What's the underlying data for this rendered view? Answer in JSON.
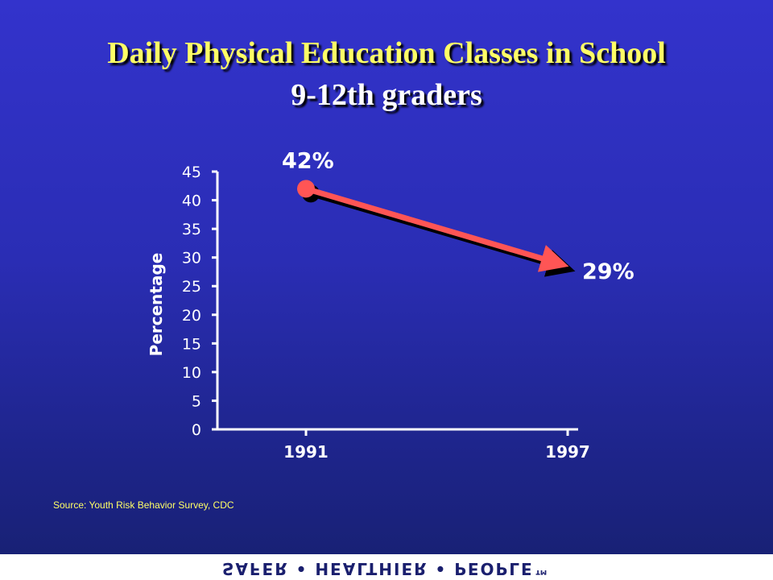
{
  "title": "Daily Physical Education Classes in School",
  "subtitle": "9-12th graders",
  "source": "Source:  Youth Risk Behavior Survey, CDC",
  "footer": "SAFER • HEALTHIER • PEOPLE™",
  "colors": {
    "title": "#ffff66",
    "line": "#ff5555",
    "shadow": "#000000",
    "background_top": "#3333cc",
    "background_bottom": "#172070"
  },
  "chart_data": {
    "type": "line",
    "categories": [
      "1991",
      "1997"
    ],
    "values": [
      42,
      29
    ],
    "data_labels": [
      "42%",
      "29%"
    ],
    "ylabel": "Percentage",
    "ylim": [
      0,
      45
    ],
    "yticks": [
      0,
      5,
      10,
      15,
      20,
      25,
      30,
      35,
      40,
      45
    ],
    "grid": false,
    "legend": "none"
  }
}
